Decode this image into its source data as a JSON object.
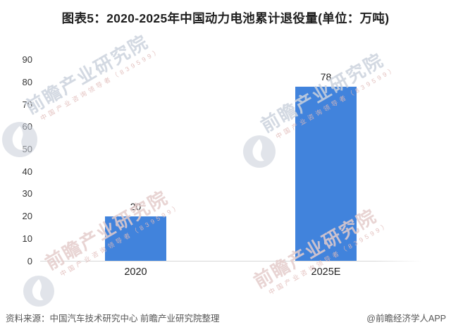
{
  "title": "图表5：2020-2025年中国动力电池累计退役量(单位：万吨)",
  "footer": {
    "source": "资料来源：中国汽车技术研究中心 前瞻产业研究院整理",
    "credit": "@前瞻经济学人APP"
  },
  "watermark": {
    "logo_icon": "qianzhan-sphere-logo",
    "text": "前瞻产业研究院",
    "subtext": "中国产业咨询领导者（839599）"
  },
  "chart_data": {
    "type": "bar",
    "categories": [
      "2020",
      "2025E"
    ],
    "values": [
      20,
      78
    ],
    "data_labels": [
      "20",
      "78"
    ],
    "title": "图表5：2020-2025年中国动力电池累计退役量(单位：万吨)",
    "xlabel": "",
    "ylabel": "",
    "ylim": [
      0,
      90
    ],
    "ytick_step": 10,
    "yticks": [
      0,
      10,
      20,
      30,
      40,
      50,
      60,
      70,
      80,
      90
    ],
    "bar_color": "#4183DC",
    "grid": false,
    "legend": null,
    "data_label_position": "above-bar"
  }
}
